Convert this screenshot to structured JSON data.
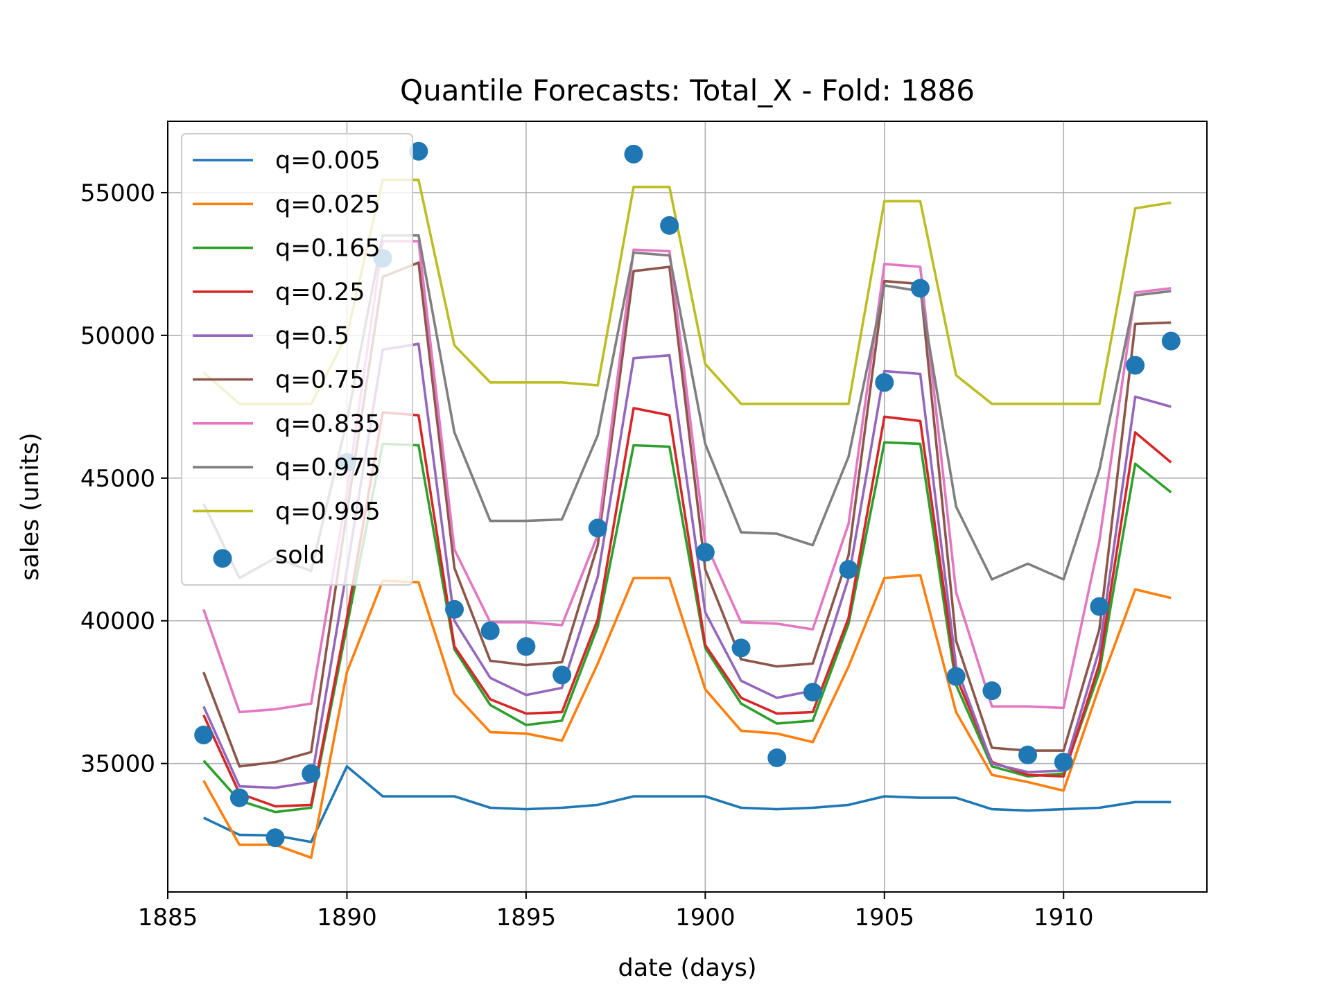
{
  "chart_data": {
    "type": "line",
    "title": "Quantile Forecasts: Total_X - Fold: 1886",
    "xlabel": "date (days)",
    "ylabel": "sales (units)",
    "xlim": [
      1885,
      1914
    ],
    "ylim": [
      30500,
      57500
    ],
    "xticks": [
      1885,
      1890,
      1895,
      1900,
      1905,
      1910
    ],
    "yticks": [
      35000,
      40000,
      45000,
      50000,
      55000
    ],
    "grid": true,
    "legend_position": "upper left",
    "x": [
      1886,
      1887,
      1888,
      1889,
      1890,
      1891,
      1892,
      1893,
      1894,
      1895,
      1896,
      1897,
      1898,
      1899,
      1900,
      1901,
      1902,
      1903,
      1904,
      1905,
      1906,
      1907,
      1908,
      1909,
      1910,
      1911,
      1912,
      1913
    ],
    "series": [
      {
        "name": "q=0.005",
        "color": "#1f77b4",
        "values": [
          33100,
          32500,
          32480,
          32250,
          34900,
          33850,
          33850,
          33850,
          33450,
          33400,
          33450,
          33550,
          33850,
          33850,
          33850,
          33450,
          33400,
          33450,
          33550,
          33850,
          33800,
          33800,
          33400,
          33350,
          33400,
          33450,
          33650,
          33650
        ]
      },
      {
        "name": "q=0.025",
        "color": "#ff7f0e",
        "values": [
          34400,
          32150,
          32150,
          31700,
          38200,
          41400,
          41350,
          37450,
          36100,
          36050,
          35800,
          38500,
          41500,
          41500,
          37600,
          36150,
          36050,
          35750,
          38400,
          41500,
          41600,
          36800,
          34600,
          34350,
          34050,
          37700,
          41100,
          40800
        ]
      },
      {
        "name": "q=0.165",
        "color": "#2ca02c",
        "values": [
          35100,
          33700,
          33300,
          33450,
          39800,
          46200,
          46150,
          39000,
          37050,
          36350,
          36500,
          39800,
          46150,
          46100,
          39050,
          37100,
          36400,
          36500,
          39900,
          46250,
          46200,
          37750,
          34900,
          34550,
          34650,
          38200,
          45500,
          44500
        ]
      },
      {
        "name": "q=0.25",
        "color": "#d62728",
        "values": [
          36700,
          33950,
          33500,
          33550,
          40100,
          47300,
          47200,
          39100,
          37250,
          36750,
          36800,
          40050,
          47450,
          47200,
          39150,
          37300,
          36750,
          36800,
          40100,
          47150,
          47000,
          38050,
          35050,
          34600,
          34550,
          38500,
          46600,
          45550
        ]
      },
      {
        "name": "q=0.5",
        "color": "#9467bd",
        "values": [
          37000,
          34200,
          34150,
          34350,
          41800,
          49500,
          49700,
          40000,
          38000,
          37400,
          37650,
          41550,
          49200,
          49300,
          40300,
          37900,
          37300,
          37550,
          41500,
          48750,
          48650,
          38400,
          35000,
          34700,
          34750,
          39000,
          47850,
          47500
        ]
      },
      {
        "name": "q=0.75",
        "color": "#8c564b",
        "values": [
          38200,
          34900,
          35050,
          35400,
          43800,
          52050,
          52550,
          41850,
          38600,
          38450,
          38550,
          42650,
          52250,
          52400,
          41800,
          38650,
          38400,
          38500,
          42300,
          51900,
          51800,
          39300,
          35550,
          35450,
          35450,
          39700,
          50400,
          50450
        ]
      },
      {
        "name": "q=0.835",
        "color": "#e377c2",
        "values": [
          40400,
          36800,
          36900,
          37100,
          44500,
          53300,
          53300,
          42500,
          39950,
          39950,
          39850,
          43000,
          53000,
          52950,
          42750,
          39950,
          39900,
          39700,
          43400,
          52500,
          52400,
          41000,
          37000,
          37000,
          36950,
          42800,
          51500,
          51650
        ]
      },
      {
        "name": "q=0.975",
        "color": "#7f7f7f",
        "values": [
          44100,
          41500,
          42200,
          41750,
          47000,
          53500,
          53500,
          46600,
          43500,
          43500,
          43550,
          46500,
          52900,
          52800,
          46200,
          43100,
          43050,
          42650,
          45750,
          51750,
          51550,
          44000,
          41450,
          42000,
          41450,
          45300,
          51400,
          51550
        ]
      },
      {
        "name": "q=0.995",
        "color": "#bcbd22",
        "values": [
          48700,
          47600,
          47600,
          47600,
          50000,
          55450,
          55450,
          49650,
          48350,
          48350,
          48350,
          48250,
          55200,
          55200,
          49000,
          47600,
          47600,
          47600,
          47600,
          54700,
          54700,
          48600,
          47600,
          47600,
          47600,
          47600,
          54450,
          54650
        ]
      }
    ],
    "scatter": {
      "name": "sold",
      "color": "#1f77b4",
      "x": [
        1886,
        1887,
        1888,
        1889,
        1890,
        1891,
        1892,
        1893,
        1894,
        1895,
        1896,
        1897,
        1898,
        1899,
        1900,
        1901,
        1902,
        1903,
        1904,
        1905,
        1906,
        1907,
        1908,
        1909,
        1910,
        1911,
        1912,
        1913
      ],
      "values": [
        36000,
        33800,
        32400,
        34650,
        45550,
        52700,
        56450,
        40400,
        39650,
        39100,
        38100,
        43250,
        56350,
        53850,
        42400,
        39050,
        35200,
        37500,
        41800,
        48350,
        51650,
        38050,
        37550,
        35300,
        35050,
        40500,
        48950,
        49800
      ]
    }
  }
}
